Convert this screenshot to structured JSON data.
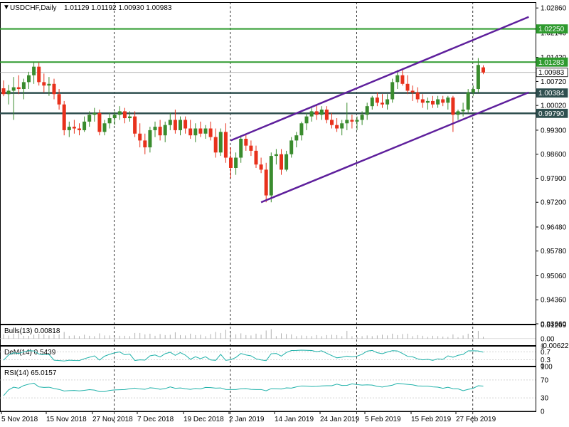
{
  "header": {
    "symbol": "USDCHF,Daily",
    "ohlc": "1.01129 1.01192 1.00930 1.00983"
  },
  "colors": {
    "bull": "#3a8c2e",
    "bear": "#e8311c",
    "hline": "#2e9a2e",
    "darkline": "#2f4f4f",
    "channel": "#5e1f9c",
    "indicator": "#20b2aa",
    "grid": "#000000"
  },
  "chart_data": [
    {
      "type": "candlestick",
      "ylim": [
        0.9366,
        1.0303
      ],
      "y_ticks": [
        "1.02860",
        "1.02140",
        "1.01420",
        "1.00720",
        "1.00020",
        "0.99300",
        "0.98600",
        "0.97900",
        "0.97200",
        "0.96480",
        "0.95780",
        "0.95060",
        "0.94360",
        "0.93660"
      ],
      "x_labels": [
        "5 Nov 2018",
        "15 Nov 2018",
        "27 Nov 2018",
        "7 Dec 2018",
        "19 Dec 2018",
        "2 Jan 2019",
        "14 Jan 2019",
        "24 Jan 2019",
        "5 Feb 2019",
        "15 Feb 2019",
        "27 Feb 2019"
      ],
      "candles": [
        {
          "o": 1.0052,
          "h": 1.0075,
          "l": 1.0029,
          "c": 1.0035
        },
        {
          "o": 1.0035,
          "h": 1.0062,
          "l": 1.0005,
          "c": 1.0045
        },
        {
          "o": 1.0045,
          "h": 1.0085,
          "l": 0.996,
          "c": 1.0055
        },
        {
          "o": 1.0055,
          "h": 1.009,
          "l": 1.0035,
          "c": 1.005
        },
        {
          "o": 1.005,
          "h": 1.008,
          "l": 1.002,
          "c": 1.007
        },
        {
          "o": 1.007,
          "h": 1.01,
          "l": 1.005,
          "c": 1.009
        },
        {
          "o": 1.009,
          "h": 1.013,
          "l": 1.0065,
          "c": 1.0115
        },
        {
          "o": 1.0115,
          "h": 1.0127,
          "l": 1.006,
          "c": 1.007
        },
        {
          "o": 1.007,
          "h": 1.0095,
          "l": 1.004,
          "c": 1.006
        },
        {
          "o": 1.006,
          "h": 1.0085,
          "l": 1.003,
          "c": 1.0065
        },
        {
          "o": 1.0065,
          "h": 1.008,
          "l": 1.002,
          "c": 1.0035
        },
        {
          "o": 1.0035,
          "h": 1.005,
          "l": 0.999,
          "c": 1.0005
        },
        {
          "o": 1.0005,
          "h": 1.0015,
          "l": 0.9915,
          "c": 0.993
        },
        {
          "o": 0.993,
          "h": 0.9955,
          "l": 0.991,
          "c": 0.994
        },
        {
          "o": 0.994,
          "h": 0.996,
          "l": 0.992,
          "c": 0.9935
        },
        {
          "o": 0.9935,
          "h": 0.995,
          "l": 0.9915,
          "c": 0.993
        },
        {
          "o": 0.993,
          "h": 0.997,
          "l": 0.9925,
          "c": 0.9955
        },
        {
          "o": 0.9955,
          "h": 0.9985,
          "l": 0.994,
          "c": 0.9975
        },
        {
          "o": 0.9975,
          "h": 0.9995,
          "l": 0.9955,
          "c": 0.998
        },
        {
          "o": 0.998,
          "h": 0.999,
          "l": 0.9915,
          "c": 0.9925
        },
        {
          "o": 0.9925,
          "h": 0.996,
          "l": 0.9915,
          "c": 0.995
        },
        {
          "o": 0.995,
          "h": 0.998,
          "l": 0.9935,
          "c": 0.9965
        },
        {
          "o": 0.9965,
          "h": 0.9985,
          "l": 0.9945,
          "c": 0.9975
        },
        {
          "o": 0.9975,
          "h": 1.0,
          "l": 0.996,
          "c": 0.9985
        },
        {
          "o": 0.9985,
          "h": 0.9995,
          "l": 0.995,
          "c": 0.9965
        },
        {
          "o": 0.9965,
          "h": 0.9985,
          "l": 0.9955,
          "c": 0.997
        },
        {
          "o": 0.997,
          "h": 0.9985,
          "l": 0.991,
          "c": 0.992
        },
        {
          "o": 0.992,
          "h": 0.995,
          "l": 0.988,
          "c": 0.99
        },
        {
          "o": 0.99,
          "h": 0.992,
          "l": 0.986,
          "c": 0.988
        },
        {
          "o": 0.988,
          "h": 0.994,
          "l": 0.9865,
          "c": 0.993
        },
        {
          "o": 0.993,
          "h": 0.9955,
          "l": 0.991,
          "c": 0.994
        },
        {
          "o": 0.994,
          "h": 0.996,
          "l": 0.99,
          "c": 0.9915
        },
        {
          "o": 0.9915,
          "h": 0.9955,
          "l": 0.9895,
          "c": 0.9945
        },
        {
          "o": 0.9945,
          "h": 0.998,
          "l": 0.993,
          "c": 0.996
        },
        {
          "o": 0.996,
          "h": 0.999,
          "l": 0.992,
          "c": 0.993
        },
        {
          "o": 0.993,
          "h": 0.997,
          "l": 0.9915,
          "c": 0.996
        },
        {
          "o": 0.996,
          "h": 0.997,
          "l": 0.992,
          "c": 0.9935
        },
        {
          "o": 0.9935,
          "h": 0.996,
          "l": 0.9905,
          "c": 0.9915
        },
        {
          "o": 0.9915,
          "h": 0.995,
          "l": 0.9895,
          "c": 0.9935
        },
        {
          "o": 0.9935,
          "h": 0.9955,
          "l": 0.991,
          "c": 0.992
        },
        {
          "o": 0.992,
          "h": 0.9945,
          "l": 0.9905,
          "c": 0.9935
        },
        {
          "o": 0.9935,
          "h": 0.9955,
          "l": 0.99,
          "c": 0.991
        },
        {
          "o": 0.991,
          "h": 0.9935,
          "l": 0.985,
          "c": 0.9865
        },
        {
          "o": 0.9865,
          "h": 0.9935,
          "l": 0.9855,
          "c": 0.9925
        },
        {
          "o": 0.9925,
          "h": 0.995,
          "l": 0.9835,
          "c": 0.985
        },
        {
          "o": 0.985,
          "h": 0.988,
          "l": 0.979,
          "c": 0.982
        },
        {
          "o": 0.982,
          "h": 0.9865,
          "l": 0.98,
          "c": 0.985
        },
        {
          "o": 0.985,
          "h": 0.9915,
          "l": 0.9835,
          "c": 0.9905
        },
        {
          "o": 0.9905,
          "h": 0.992,
          "l": 0.987,
          "c": 0.9885
        },
        {
          "o": 0.9885,
          "h": 0.99,
          "l": 0.9855,
          "c": 0.987
        },
        {
          "o": 0.987,
          "h": 0.9885,
          "l": 0.982,
          "c": 0.983
        },
        {
          "o": 0.983,
          "h": 0.985,
          "l": 0.9805,
          "c": 0.9815
        },
        {
          "o": 0.9815,
          "h": 0.9835,
          "l": 0.972,
          "c": 0.974
        },
        {
          "o": 0.974,
          "h": 0.9865,
          "l": 0.972,
          "c": 0.9855
        },
        {
          "o": 0.9855,
          "h": 0.9875,
          "l": 0.983,
          "c": 0.986
        },
        {
          "o": 0.986,
          "h": 0.9875,
          "l": 0.98,
          "c": 0.9815
        },
        {
          "o": 0.9815,
          "h": 0.987,
          "l": 0.981,
          "c": 0.986
        },
        {
          "o": 0.986,
          "h": 0.991,
          "l": 0.985,
          "c": 0.99
        },
        {
          "o": 0.99,
          "h": 0.9925,
          "l": 0.988,
          "c": 0.9915
        },
        {
          "o": 0.9915,
          "h": 0.9955,
          "l": 0.99,
          "c": 0.995
        },
        {
          "o": 0.995,
          "h": 0.998,
          "l": 0.993,
          "c": 0.997
        },
        {
          "o": 0.997,
          "h": 0.9995,
          "l": 0.9955,
          "c": 0.9985
        },
        {
          "o": 0.9985,
          "h": 1.0005,
          "l": 0.996,
          "c": 0.9975
        },
        {
          "o": 0.9975,
          "h": 1.0,
          "l": 0.996,
          "c": 0.999
        },
        {
          "o": 0.999,
          "h": 1.0,
          "l": 0.995,
          "c": 0.996
        },
        {
          "o": 0.996,
          "h": 0.998,
          "l": 0.9935,
          "c": 0.9945
        },
        {
          "o": 0.9945,
          "h": 0.9965,
          "l": 0.9925,
          "c": 0.9935
        },
        {
          "o": 0.9935,
          "h": 0.996,
          "l": 0.9915,
          "c": 0.995
        },
        {
          "o": 0.995,
          "h": 1.001,
          "l": 0.993,
          "c": 0.996
        },
        {
          "o": 0.996,
          "h": 0.9975,
          "l": 0.9935,
          "c": 0.9955
        },
        {
          "o": 0.9955,
          "h": 0.997,
          "l": 0.993,
          "c": 0.996
        },
        {
          "o": 0.996,
          "h": 0.9985,
          "l": 0.9945,
          "c": 0.9975
        },
        {
          "o": 0.9975,
          "h": 1.001,
          "l": 0.996,
          "c": 1.0
        },
        {
          "o": 1.0,
          "h": 1.003,
          "l": 0.999,
          "c": 1.0025
        },
        {
          "o": 1.0025,
          "h": 1.004,
          "l": 1.0,
          "c": 1.001
        },
        {
          "o": 1.001,
          "h": 1.0035,
          "l": 0.9995,
          "c": 1.0005
        },
        {
          "o": 1.0005,
          "h": 1.0035,
          "l": 0.999,
          "c": 1.002
        },
        {
          "o": 1.002,
          "h": 1.008,
          "l": 1.001,
          "c": 1.007
        },
        {
          "o": 1.007,
          "h": 1.0105,
          "l": 1.005,
          "c": 1.009
        },
        {
          "o": 1.009,
          "h": 1.011,
          "l": 1.006,
          "c": 1.0065
        },
        {
          "o": 1.0065,
          "h": 1.009,
          "l": 1.0035,
          "c": 1.0045
        },
        {
          "o": 1.0045,
          "h": 1.006,
          "l": 1.0015,
          "c": 1.004
        },
        {
          "o": 1.004,
          "h": 1.0055,
          "l": 1.001,
          "c": 1.002
        },
        {
          "o": 1.002,
          "h": 1.0035,
          "l": 0.9995,
          "c": 1.001
        },
        {
          "o": 1.001,
          "h": 1.0025,
          "l": 0.999,
          "c": 1.0015
        },
        {
          "o": 1.0015,
          "h": 1.003,
          "l": 0.9995,
          "c": 1.0005
        },
        {
          "o": 1.0005,
          "h": 1.003,
          "l": 0.9995,
          "c": 1.002
        },
        {
          "o": 1.002,
          "h": 1.003,
          "l": 1.0,
          "c": 1.001
        },
        {
          "o": 1.001,
          "h": 1.003,
          "l": 0.999,
          "c": 1.0025
        },
        {
          "o": 1.0025,
          "h": 1.003,
          "l": 0.9925,
          "c": 0.9975
        },
        {
          "o": 0.9975,
          "h": 0.999,
          "l": 0.996,
          "c": 0.9985
        },
        {
          "o": 0.9985,
          "h": 1.001,
          "l": 0.997,
          "c": 0.999
        },
        {
          "o": 0.999,
          "h": 1.005,
          "l": 0.998,
          "c": 1.004
        },
        {
          "o": 1.004,
          "h": 1.006,
          "l": 1.003,
          "c": 1.005
        },
        {
          "o": 1.005,
          "h": 1.014,
          "l": 1.004,
          "c": 1.012
        },
        {
          "o": 1.0113,
          "h": 1.0119,
          "l": 1.0093,
          "c": 1.0098
        }
      ],
      "hlines": [
        {
          "price": 1.0225,
          "label": "1.02250",
          "kind": "green"
        },
        {
          "price": 1.01283,
          "label": "1.01283",
          "kind": "green"
        },
        {
          "price": 1.00983,
          "label": "1.00983",
          "kind": "current"
        },
        {
          "price": 1.00384,
          "label": "1.00384",
          "kind": "dark"
        },
        {
          "price": 0.9979,
          "label": "0.99790",
          "kind": "dark"
        }
      ],
      "channel": {
        "upper": [
          [
            45,
            0.99
          ],
          [
            104,
            1.026
          ]
        ],
        "lower": [
          [
            51,
            0.972
          ],
          [
            104,
            1.004
          ]
        ]
      },
      "separators": [
        22,
        45,
        70,
        93
      ]
    },
    {
      "type": "bar",
      "title": "Bulls(13) 0.00818",
      "ylim": [
        -0.006,
        0.013
      ],
      "y_ticks": [
        "0.01269",
        "0.00",
        "-0.00622"
      ],
      "values_note": "bull power bars"
    },
    {
      "type": "line",
      "title": "DeM(14) 0.5439",
      "ylim": [
        0,
        1
      ],
      "y_ticks": [
        "1",
        "0.7",
        "0.3",
        "0"
      ]
    },
    {
      "type": "line",
      "title": "RSI(14) 65.0157",
      "ylim": [
        0,
        100
      ],
      "y_ticks": [
        "100",
        "70",
        "30",
        "0"
      ]
    }
  ]
}
